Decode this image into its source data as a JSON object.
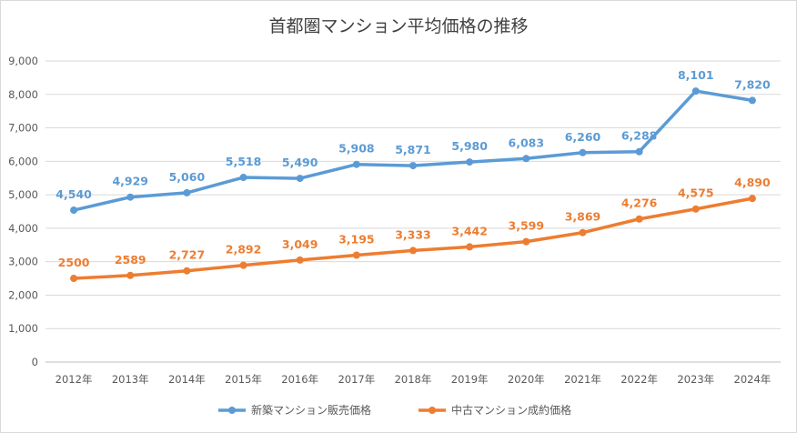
{
  "chart_data": {
    "type": "line",
    "title": "首都圏マンション平均価格の推移",
    "xlabel": "",
    "ylabel": "",
    "categories": [
      "2012年",
      "2013年",
      "2014年",
      "2015年",
      "2016年",
      "2017年",
      "2018年",
      "2019年",
      "2020年",
      "2021年",
      "2022年",
      "2023年",
      "2024年"
    ],
    "ylim": [
      0,
      9000
    ],
    "yticks": [
      "0",
      "1,000",
      "2,000",
      "3,000",
      "4,000",
      "5,000",
      "6,000",
      "7,000",
      "8,000",
      "9,000"
    ],
    "grid": true,
    "legend_position": "bottom",
    "series": [
      {
        "name": "新築マンション販売価格",
        "color": "#5b9bd5",
        "values": [
          4540,
          4929,
          5060,
          5518,
          5490,
          5908,
          5871,
          5980,
          6083,
          6260,
          6288,
          8101,
          7820
        ],
        "labels": [
          "4,540",
          "4,929",
          "5,060",
          "5,518",
          "5,490",
          "5,908",
          "5,871",
          "5,980",
          "6,083",
          "6,260",
          "6,288",
          "8,101",
          "7,820"
        ]
      },
      {
        "name": "中古マンション成約価格",
        "color": "#ed7d31",
        "values": [
          2500,
          2589,
          2727,
          2892,
          3049,
          3195,
          3333,
          3442,
          3599,
          3869,
          4276,
          4575,
          4890
        ],
        "labels": [
          "2500",
          "2589",
          "2,727",
          "2,892",
          "3,049",
          "3,195",
          "3,333",
          "3,442",
          "3,599",
          "3,869",
          "4,276",
          "4,575",
          "4,890"
        ]
      }
    ]
  }
}
